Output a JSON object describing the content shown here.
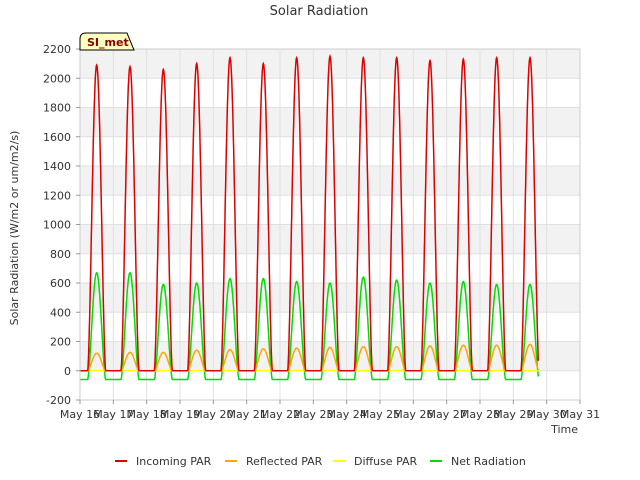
{
  "chart_data": {
    "type": "line",
    "title": "Solar Radiation",
    "xlabel": "Time",
    "ylabel": "Solar Radiation (W/m2 or um/m2/s)",
    "ylim": [
      -200,
      2200
    ],
    "yticks": [
      -200,
      0,
      200,
      400,
      600,
      800,
      1000,
      1200,
      1400,
      1600,
      1800,
      2000,
      2200
    ],
    "xlim": [
      16,
      31
    ],
    "xticks": [
      16,
      17,
      18,
      19,
      20,
      21,
      22,
      23,
      24,
      25,
      26,
      27,
      28,
      29,
      30,
      31
    ],
    "xtick_labels": [
      "May 16",
      "May 17",
      "May 18",
      "May 19",
      "May 20",
      "May 21",
      "May 22",
      "May 23",
      "May 24",
      "May 25",
      "May 26",
      "May 27",
      "May 28",
      "May 29",
      "May 30",
      "May 31"
    ],
    "grid": true,
    "site_badge": "SI_met",
    "legend_position": "bottom",
    "days": [
      16.5,
      17.5,
      18.5,
      19.5,
      20.5,
      21.5,
      22.5,
      23.5,
      24.5,
      25.5,
      26.5,
      27.5,
      28.5,
      29.5
    ],
    "series": [
      {
        "name": "Incoming PAR",
        "color": "#dd0000",
        "peaks": [
          2090,
          2080,
          2060,
          2100,
          2140,
          2100,
          2140,
          2150,
          2140,
          2140,
          2120,
          2130,
          2140,
          2140
        ],
        "night": 0
      },
      {
        "name": "Reflected PAR",
        "color": "#ffa500",
        "peaks": [
          120,
          125,
          125,
          140,
          145,
          150,
          155,
          160,
          165,
          165,
          170,
          175,
          175,
          180
        ],
        "night": 0
      },
      {
        "name": "Diffuse PAR",
        "color": "#ffff00",
        "peaks": [
          0,
          0,
          0,
          0,
          0,
          0,
          0,
          0,
          0,
          0,
          0,
          0,
          0,
          0
        ],
        "night": 0
      },
      {
        "name": "Net Radiation",
        "color": "#00dd00",
        "peaks": [
          670,
          670,
          590,
          600,
          630,
          630,
          610,
          600,
          640,
          620,
          600,
          610,
          590,
          590
        ],
        "night": -60
      }
    ]
  }
}
